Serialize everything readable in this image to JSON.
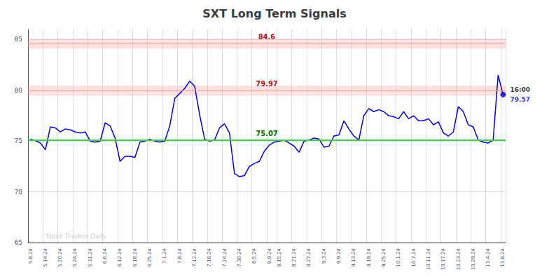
{
  "chart_data": {
    "type": "line",
    "title": "SXT Long Term Signals",
    "categories": [
      "5.8.24",
      null,
      null,
      "5.14.24",
      null,
      null,
      "5.20.24",
      null,
      null,
      "5.24.24",
      null,
      null,
      "5.31.24",
      null,
      null,
      "6.6.24",
      null,
      null,
      "6.12.24",
      null,
      null,
      "6.18.24",
      null,
      null,
      "6.25.24",
      null,
      null,
      "7.1.24",
      null,
      null,
      "7.8.24",
      null,
      null,
      "7.12.24",
      null,
      null,
      "7.18.24",
      null,
      null,
      "7.24.24",
      null,
      null,
      "7.30.24",
      null,
      null,
      "8.5.24",
      null,
      null,
      "8.9.24",
      null,
      "8.15.24",
      null,
      null,
      "8.21.24",
      null,
      null,
      "8.27.24",
      null,
      null,
      "9.3.24",
      null,
      null,
      "9.9.24",
      null,
      null,
      "9.13.24",
      null,
      null,
      "9.19.24",
      null,
      null,
      "9.25.24",
      null,
      null,
      "10.1.24",
      null,
      null,
      "10.7.24",
      null,
      null,
      "10.11.24",
      null,
      null,
      "10.17.24",
      null,
      null,
      "10.23.24",
      null,
      null,
      "10.29.24",
      null,
      null,
      "11.4.24",
      null,
      null,
      "11.8.24"
    ],
    "values": [
      75.2,
      75.05,
      74.8,
      74.15,
      76.4,
      76.3,
      75.9,
      76.2,
      76.1,
      75.9,
      75.8,
      75.9,
      75.0,
      74.9,
      75.0,
      76.8,
      76.5,
      75.3,
      73.0,
      73.5,
      73.5,
      73.4,
      74.9,
      75.0,
      75.2,
      75.0,
      74.9,
      75.0,
      76.5,
      79.2,
      79.7,
      80.2,
      80.9,
      80.4,
      77.6,
      75.2,
      75.0,
      75.1,
      76.3,
      76.7,
      75.8,
      71.8,
      71.5,
      71.6,
      72.5,
      72.8,
      73.0,
      74.0,
      74.6,
      74.9,
      75.0,
      75.1,
      74.8,
      74.5,
      73.9,
      75.0,
      75.1,
      75.3,
      75.2,
      74.4,
      74.5,
      75.5,
      75.6,
      77.0,
      76.2,
      75.5,
      75.1,
      77.5,
      78.2,
      77.9,
      78.1,
      77.9,
      77.5,
      77.4,
      77.2,
      77.9,
      77.2,
      77.5,
      77.0,
      77.0,
      77.2,
      76.6,
      76.9,
      75.8,
      75.5,
      75.9,
      78.4,
      77.9,
      76.6,
      76.4,
      75.1,
      74.9,
      74.8,
      75.1,
      81.5,
      79.57
    ],
    "color": "#0000cc",
    "ylim": [
      65,
      86
    ],
    "yticks": [
      65,
      70,
      75,
      80,
      85
    ],
    "grid": true,
    "reference_lines": [
      {
        "value": 84.6,
        "label": "84.6",
        "color": "#ff9999",
        "label_color": "#990000",
        "band": [
          84.1,
          85.1
        ],
        "band_color": "#ff8888"
      },
      {
        "value": 79.97,
        "label": "79.97",
        "color": "#ff9999",
        "label_color": "#990000",
        "band": [
          79.47,
          80.47
        ],
        "band_color": "#ff8888"
      },
      {
        "value": 75.07,
        "label": "75.07",
        "color": "#44cc44",
        "label_color": "#006600"
      }
    ],
    "last_point": {
      "value": 79.57,
      "label": "79.57",
      "time_label": "16:00",
      "color": "#0000cc"
    },
    "watermark": {
      "text": "Stock Traders Daily",
      "color": "#cccccc"
    }
  }
}
